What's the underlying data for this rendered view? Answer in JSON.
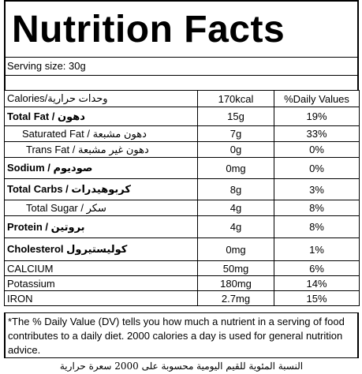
{
  "title": "Nutrition Facts",
  "serving": "Serving size:  30g",
  "header": {
    "calories": "Calories/وحدات حرارية",
    "amount": "170kcal",
    "dv": "%Daily Values"
  },
  "rows": [
    {
      "label": "Total Fat / دهون",
      "amount": "15g",
      "dv": "19%"
    },
    {
      "label": "Saturated Fat / دهون مشبعة",
      "amount": "7g",
      "dv": "33%"
    },
    {
      "label": "Trans Fat / دهون غير مشبعة",
      "amount": "0g",
      "dv": "0%"
    },
    {
      "label": "Sodium / صوديوم",
      "amount": "0mg",
      "dv": "0%"
    },
    {
      "label": "Total Carbs / كربوهيدرات",
      "amount": "8g",
      "dv": "3%"
    },
    {
      "label": "Total Sugar / سكر",
      "amount": "4g",
      "dv": "8%"
    },
    {
      "label": "Protein / بروتين",
      "amount": "4g",
      "dv": "8%"
    },
    {
      "label": "Cholesterol كوليستيرول",
      "amount": "0mg",
      "dv": "1%"
    },
    {
      "label": "CALCIUM",
      "amount": "50mg",
      "dv": "6%"
    },
    {
      "label": "Potassium",
      "amount": "180mg",
      "dv": "14%"
    },
    {
      "label": "IRON",
      "amount": "2.7mg",
      "dv": "15%"
    }
  ],
  "note": "*The % Daily Value (DV) tells you how much a nutrient in a serving of food contributes to a daily diet. 2000 calories a day is used for general nutrition advice.",
  "footer": "النسبة المئوية للقيم اليومية محسوبة على 2000 سعرة حرارية"
}
